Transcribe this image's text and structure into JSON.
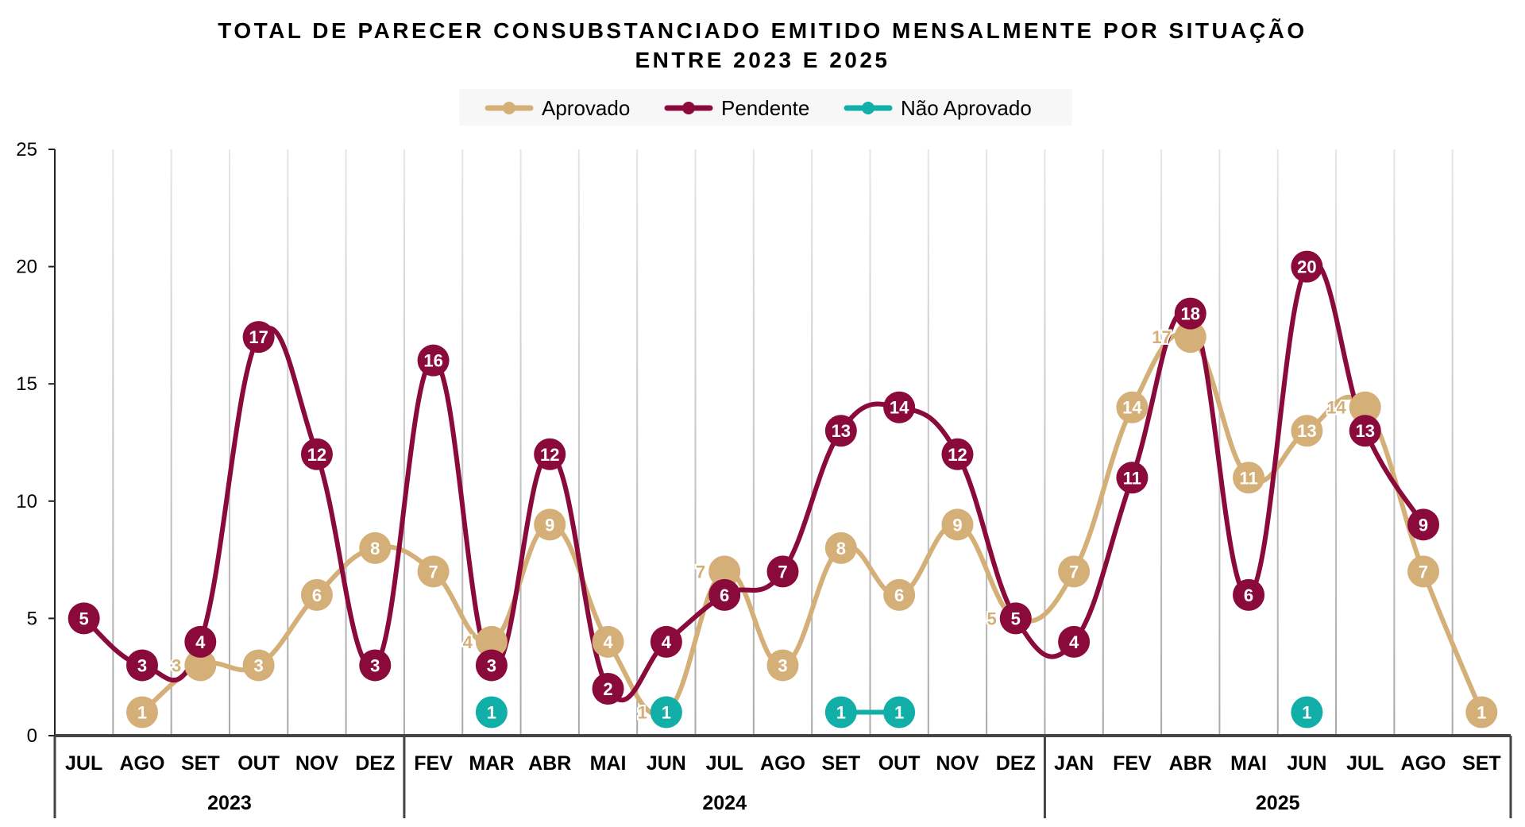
{
  "chart_data": {
    "type": "line",
    "title": "TOTAL DE PARECER CONSUBSTANCIADO EMITIDO MENSALMENTE POR SITUAÇÃO",
    "subtitle": "ENTRE 2023 E 2025",
    "xlabel": "",
    "ylabel": "",
    "ylim": [
      0,
      25
    ],
    "yticks": [
      "0",
      "5",
      "10",
      "15",
      "20",
      "25"
    ],
    "grid": "vertical",
    "legend_position": "top",
    "years": [
      {
        "label": "2023",
        "count": 6
      },
      {
        "label": "2024",
        "count": 11
      },
      {
        "label": "2025",
        "count": 8
      }
    ],
    "categories": [
      "JUL",
      "AGO",
      "SET",
      "OUT",
      "NOV",
      "DEZ",
      "FEV",
      "MAR",
      "ABR",
      "MAI",
      "JUN",
      "JUL",
      "AGO",
      "SET",
      "OUT",
      "NOV",
      "DEZ",
      "JAN",
      "FEV",
      "ABR",
      "MAI",
      "JUN",
      "JUL",
      "AGO",
      "SET"
    ],
    "series": [
      {
        "name": "Aprovado",
        "color": "#D4B078",
        "values": [
          null,
          1,
          3,
          3,
          6,
          8,
          7,
          4,
          9,
          4,
          1,
          7,
          3,
          8,
          6,
          9,
          5,
          7,
          14,
          17,
          11,
          13,
          14,
          7,
          1
        ]
      },
      {
        "name": "Pendente",
        "color": "#8A0B3B",
        "values": [
          5,
          3,
          4,
          17,
          12,
          3,
          16,
          3,
          12,
          2,
          4,
          6,
          7,
          13,
          14,
          12,
          5,
          4,
          11,
          18,
          6,
          20,
          13,
          9,
          null
        ]
      },
      {
        "name": "Não Aprovado",
        "color": "#12AFA8",
        "values": [
          null,
          null,
          null,
          null,
          null,
          null,
          null,
          1,
          null,
          null,
          1,
          null,
          null,
          1,
          1,
          null,
          null,
          null,
          null,
          null,
          null,
          1,
          null,
          null,
          null
        ]
      }
    ]
  }
}
